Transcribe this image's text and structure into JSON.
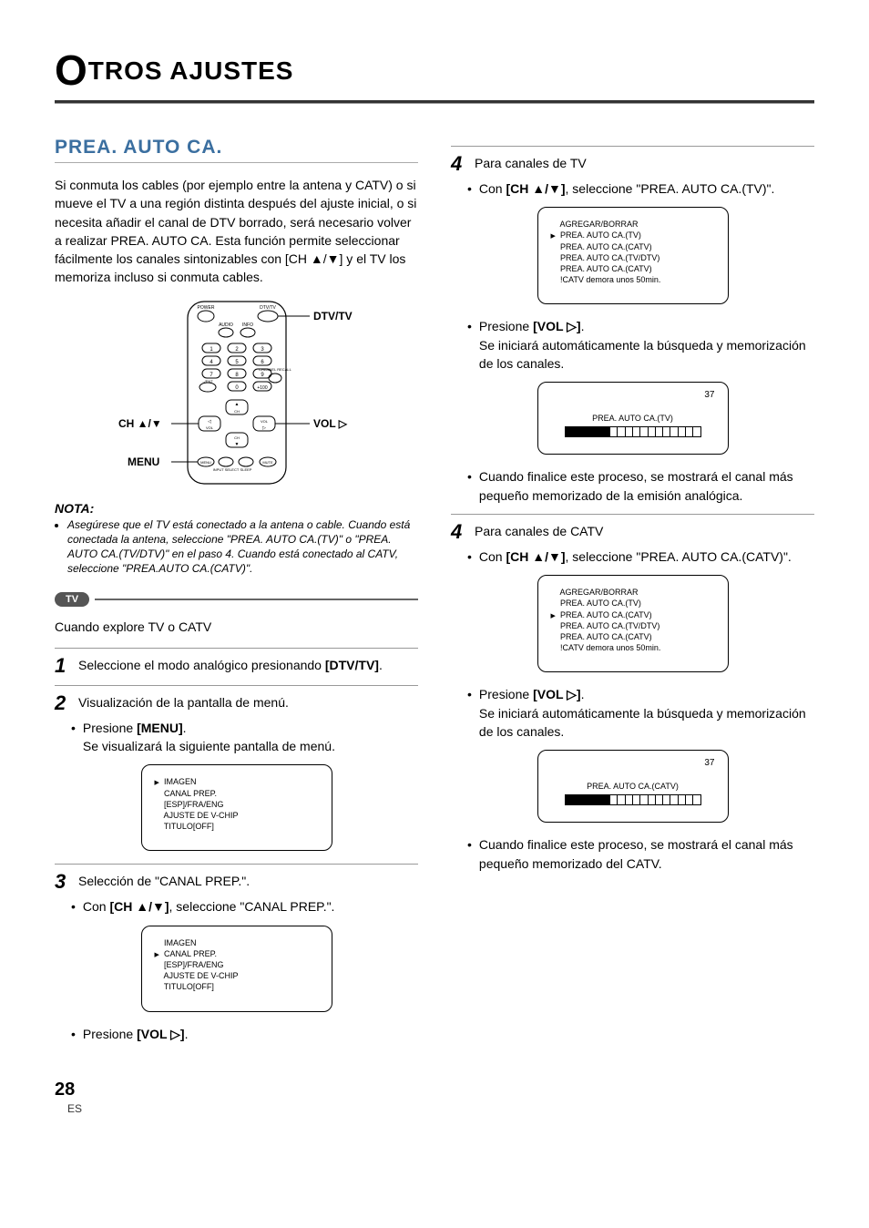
{
  "page": {
    "title_big_letter": "O",
    "title_rest": "TROS AJUSTES",
    "page_number": "28",
    "page_lang": "ES"
  },
  "left": {
    "heading": "PREA. AUTO CA.",
    "intro": "Si conmuta los cables (por ejemplo entre la antena y CATV) o si mueve el TV a una región distinta después del ajuste inicial, o si necesita añadir el canal de DTV borrado, será necesario volver a realizar PREA. AUTO CA. Esta función permite seleccionar fácilmente los canales sintonizables con [CH ▲/▼] y el TV los memoriza incluso si conmuta cables.",
    "remote_labels": {
      "dtvtv": "DTV/TV",
      "ch": "CH ▲/▼",
      "vol": "VOL ▷",
      "menu": "MENU"
    },
    "remote_small": {
      "power": "POWER",
      "dtvtv": "DTV/TV",
      "audio": "AUDIO",
      "info": "INFO",
      "ent": "–/ENT",
      "plus100": "+100",
      "recall": "CHANNEL RECALL",
      "chlabel": "CH",
      "vollabel": "VOL",
      "menu": "MENU",
      "input": "INPUT SELECT",
      "sleep": "SLEEP",
      "mute": "MUTE"
    },
    "nota_title": "NOTA:",
    "nota_text": "Asegúrese que el TV está conectado a la antena o cable. Cuando está conectada la antena, seleccione \"PREA. AUTO CA.(TV)\" o \"PREA. AUTO CA.(TV/DTV)\" en el paso 4. Cuando está conectado al CATV, seleccione \"PREA.AUTO CA.(CATV)\".",
    "pill": "TV",
    "explore_line": "Cuando explore TV o CATV",
    "step1": {
      "num": "1",
      "text_a": "Seleccione el modo analógico presionando ",
      "text_b": "[DTV/TV]",
      "text_c": "."
    },
    "step2": {
      "num": "2",
      "text": "Visualización de la pantalla de menú.",
      "bullet_a": "Presione ",
      "bullet_b": "[MENU]",
      "bullet_c": ".",
      "bullet2": "Se visualizará la siguiente pantalla de menú."
    },
    "osd1": {
      "items": [
        "IMAGEN",
        "CANAL PREP.",
        "[ESP]/FRA/ENG",
        "AJUSTE DE V-CHIP",
        "TITULO[OFF]"
      ],
      "cursor_index": 0
    },
    "step3": {
      "num": "3",
      "text": "Selección de \"CANAL PREP.\".",
      "bullet_a": "Con ",
      "bullet_b": "[CH ▲/▼]",
      "bullet_c": ", seleccione \"CANAL PREP.\"."
    },
    "osd2": {
      "items": [
        "IMAGEN",
        "CANAL PREP.",
        "[ESP]/FRA/ENG",
        "AJUSTE DE V-CHIP",
        "TITULO[OFF]"
      ],
      "cursor_index": 1
    },
    "final_bullet_a": "Presione ",
    "final_bullet_b": "[VOL ▷]",
    "final_bullet_c": "."
  },
  "right": {
    "step4tv": {
      "num": "4",
      "text": "Para canales de TV",
      "bullet_a": "Con ",
      "bullet_b": "[CH ▲/▼]",
      "bullet_c": ", seleccione \"PREA. AUTO CA.(TV)\"."
    },
    "osd_tv_menu": {
      "items": [
        "AGREGAR/BORRAR",
        "PREA. AUTO CA.(TV)",
        "PREA. AUTO CA.(CATV)",
        "PREA. AUTO CA.(TV/DTV)",
        "PREA. AUTO CA.(CATV)",
        "!CATV demora unos 50min."
      ],
      "cursor_index": 1
    },
    "press_a": "Presione ",
    "press_b": "[VOL ▷]",
    "press_c": ".",
    "auto_search": "Se iniciará automáticamente la búsqueda y memorización de los canales.",
    "progress_tv": {
      "channel": "37",
      "title": "PREA. AUTO CA.(TV)",
      "segments": 18,
      "filled": 6
    },
    "tv_done": "Cuando finalice este proceso, se mostrará el canal más pequeño memorizado de la emisión analógica.",
    "step4catv": {
      "num": "4",
      "text": "Para canales de CATV",
      "bullet_a": "Con ",
      "bullet_b": "[CH ▲/▼]",
      "bullet_c": ", seleccione \"PREA. AUTO CA.(CATV)\"."
    },
    "osd_catv_menu": {
      "items": [
        "AGREGAR/BORRAR",
        "PREA. AUTO CA.(TV)",
        "PREA. AUTO CA.(CATV)",
        "PREA. AUTO CA.(TV/DTV)",
        "PREA. AUTO CA.(CATV)",
        "!CATV demora unos 50min."
      ],
      "cursor_index": 2
    },
    "progress_catv": {
      "channel": "37",
      "title": "PREA. AUTO CA.(CATV)",
      "segments": 18,
      "filled": 6
    },
    "catv_done": "Cuando finalice este proceso, se mostrará el canal más pequeño memorizado del CATV."
  }
}
